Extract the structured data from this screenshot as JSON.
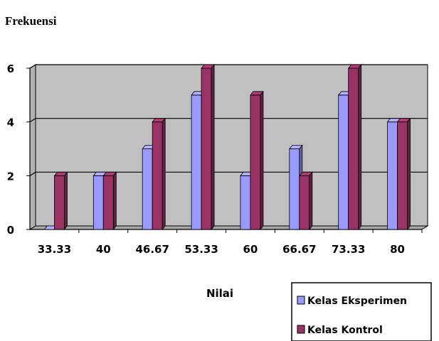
{
  "chart_data": {
    "type": "bar",
    "title": "",
    "ylabel": "Frekuensi",
    "xlabel": "Nilai",
    "categories": [
      "33.33",
      "40",
      "46.67",
      "53.33",
      "60",
      "66.67",
      "73.33",
      "80"
    ],
    "series": [
      {
        "name": "Kelas Eksperimen",
        "values": [
          0,
          2,
          3,
          5,
          2,
          3,
          5,
          4
        ],
        "color": "#9999FF"
      },
      {
        "name": "Kelas Kontrol",
        "values": [
          2,
          2,
          4,
          6,
          5,
          2,
          6,
          4
        ],
        "color": "#993366"
      }
    ],
    "ylim": [
      0,
      6
    ],
    "yticks": [
      0,
      2,
      4,
      6
    ],
    "grid": true,
    "plot_background": "#C0C0C0",
    "legend_position": "bottom-right"
  }
}
